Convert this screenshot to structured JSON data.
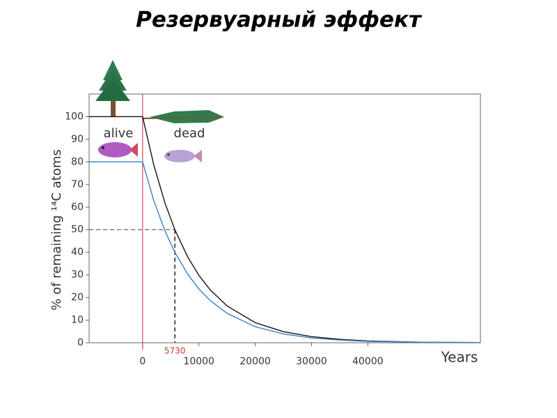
{
  "chart_data": {
    "type": "line",
    "title": "Резервуарный эффект",
    "ylabel": "% of remaining ¹⁴C atoms",
    "xlabel": "Years",
    "annotations": [
      "alive",
      "dead"
    ],
    "x": [
      -9500,
      0,
      2000,
      4000,
      5730,
      8000,
      10000,
      12000,
      15000,
      20000,
      25000,
      30000,
      35000,
      40000,
      50000,
      60000
    ],
    "series": [
      {
        "color": "#111111",
        "values": [
          100,
          100,
          78.5,
          61.6,
          50,
          38.0,
          29.8,
          23.4,
          16.3,
          8.9,
          4.9,
          2.7,
          1.5,
          0.8,
          0.2,
          0.1
        ]
      },
      {
        "color": "#3a7fc1",
        "values": [
          80,
          80,
          62.8,
          49.3,
          40,
          30.4,
          23.8,
          18.7,
          13.0,
          7.1,
          3.9,
          2.1,
          1.2,
          0.6,
          0.2,
          0.1
        ]
      }
    ],
    "half_life": {
      "x": 5730,
      "y": 50,
      "color": "#c0392b"
    },
    "death_line": {
      "x": 0,
      "color": "#d4465a"
    },
    "xlim": [
      -9500,
      60000
    ],
    "ylim": [
      0,
      110
    ],
    "xticks": [
      0,
      10000,
      20000,
      30000,
      40000
    ],
    "yticks": [
      0,
      10,
      20,
      30,
      40,
      50,
      60,
      70,
      80,
      90,
      100
    ],
    "grid": false
  }
}
